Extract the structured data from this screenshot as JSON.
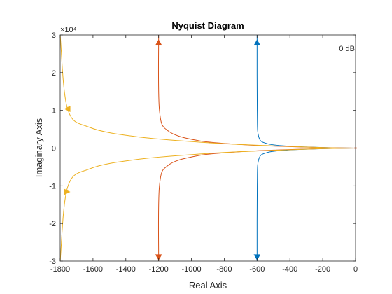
{
  "chart_data": {
    "type": "line",
    "title": "Nyquist Diagram",
    "xlabel": "Real Axis",
    "ylabel": "Imaginary Axis",
    "xlim": [
      -1800,
      0
    ],
    "ylim": [
      -30000,
      30000
    ],
    "xticks": [
      "-1800",
      "-1600",
      "-1400",
      "-1200",
      "-1000",
      "-800",
      "-600",
      "-400",
      "-200",
      "0"
    ],
    "yticks": [
      "-3",
      "-2",
      "-1",
      "0",
      "1",
      "2",
      "3"
    ],
    "y_exponent_label": "×10⁴",
    "annotation": "0 dB",
    "grid": false,
    "colors": {
      "blue": "#0072BD",
      "orange": "#D95319",
      "yellow": "#EDB120",
      "axis": "#262626",
      "zero_line": "#000000"
    },
    "series": [
      {
        "color": "#0072BD",
        "real_asymptote": -600,
        "x": [
          -600,
          -599,
          -590,
          -540,
          -420,
          -300,
          -150,
          0
        ],
        "y": [
          30000,
          10000,
          3000,
          1200,
          550,
          300,
          100,
          0
        ]
      },
      {
        "color": "#D95319",
        "real_asymptote": -1200,
        "x": [
          -1200,
          -1195,
          -1140,
          -960,
          -720,
          -480,
          -200,
          0
        ],
        "y": [
          30000,
          10000,
          4500,
          2000,
          1000,
          500,
          150,
          0
        ]
      },
      {
        "color": "#EDB120",
        "real_asymptote": -1800,
        "x": [
          -1800,
          -1755,
          -1620,
          -1330,
          -890,
          -500,
          -200,
          0
        ],
        "y": [
          30000,
          10400,
          5500,
          3000,
          1400,
          600,
          150,
          0
        ]
      }
    ]
  }
}
